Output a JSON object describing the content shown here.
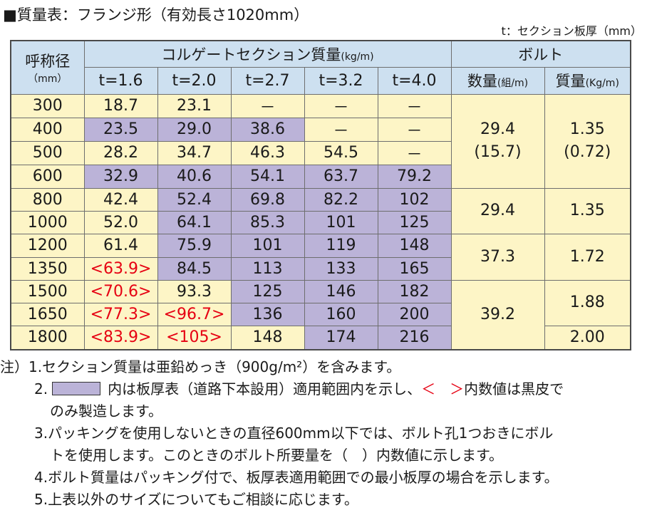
{
  "title": "■質量表：フランジ形（有効長さ1020mm）",
  "unit_note": "t：セクション板厚（mm）",
  "header": {
    "diameter": "呼称径",
    "diameter_unit": "（mm）",
    "section_mass": "コルゲートセクション質量",
    "section_mass_unit": "(kg/m)",
    "bolt": "ボルト",
    "thicknesses": [
      "t=1.6",
      "t=2.0",
      "t=2.7",
      "t=3.2",
      "t=4.0"
    ],
    "bolt_count": "数量",
    "bolt_count_unit": "(組/m)",
    "bolt_mass": "質量",
    "bolt_mass_unit": "(Kg/m)"
  },
  "rows": [
    {
      "d": "300",
      "v": [
        "18.7",
        "23.1",
        "－",
        "－",
        "－"
      ]
    },
    {
      "d": "400",
      "v": [
        "23.5",
        "29.0",
        "38.6",
        "－",
        "－"
      ]
    },
    {
      "d": "500",
      "v": [
        "28.2",
        "34.7",
        "46.3",
        "54.5",
        "－"
      ]
    },
    {
      "d": "600",
      "v": [
        "32.9",
        "40.6",
        "54.1",
        "63.7",
        "79.2"
      ]
    },
    {
      "d": "800",
      "v": [
        "42.4",
        "52.4",
        "69.8",
        "82.2",
        "102"
      ]
    },
    {
      "d": "1000",
      "v": [
        "52.0",
        "64.1",
        "85.3",
        "101",
        "125"
      ]
    },
    {
      "d": "1200",
      "v": [
        "61.4",
        "75.9",
        "101",
        "119",
        "148"
      ]
    },
    {
      "d": "1350",
      "v": [
        "<63.9>",
        "84.5",
        "113",
        "133",
        "165"
      ]
    },
    {
      "d": "1500",
      "v": [
        "<70.6>",
        "93.3",
        "125",
        "146",
        "182"
      ]
    },
    {
      "d": "1650",
      "v": [
        "<77.3>",
        "<96.7>",
        "136",
        "160",
        "200"
      ]
    },
    {
      "d": "1800",
      "v": [
        "<83.9>",
        "<105>",
        "148",
        "174",
        "216"
      ]
    }
  ],
  "bolt_groups": {
    "g1_count": [
      "29.4",
      "(15.7)"
    ],
    "g1_mass": [
      "1.35",
      "(0.72)"
    ],
    "g2_count": "29.4",
    "g2_mass": "1.35",
    "g3_count": "37.3",
    "g3_mass": "1.72",
    "g4_count": "39.2",
    "g4_mass_a": "1.88",
    "g4_mass_b": "2.00"
  },
  "colors": {
    "header": "#cde0f0",
    "cream": "#fdf5c6",
    "purple": "#bbb3d8",
    "red": "#e60012"
  },
  "notes": {
    "n1": "注）1.セクション質量は亜鉛めっき（900g/m²）を含みます。",
    "n2_prefix": "2.",
    "n2_mid": "内は板厚表（道路下本設用）適用範囲内を示し、",
    "n2_red": "＜　＞",
    "n2_suffix": "内数値は黒皮で",
    "n2_line2": "のみ製造します。",
    "n3_line1": "3.パッキングを使用しないときの直径600mm以下では、ボルト孔1つおきにボル",
    "n3_line2": "トを使用します。このときのボルト所要量を（　）内数値に示します。",
    "n4": "4.ボルト質量はパッキング付で、板厚表適用範囲での最小板厚の場合を示します。",
    "n5": "5.上表以外のサイズについてもご相談に応じます。"
  }
}
